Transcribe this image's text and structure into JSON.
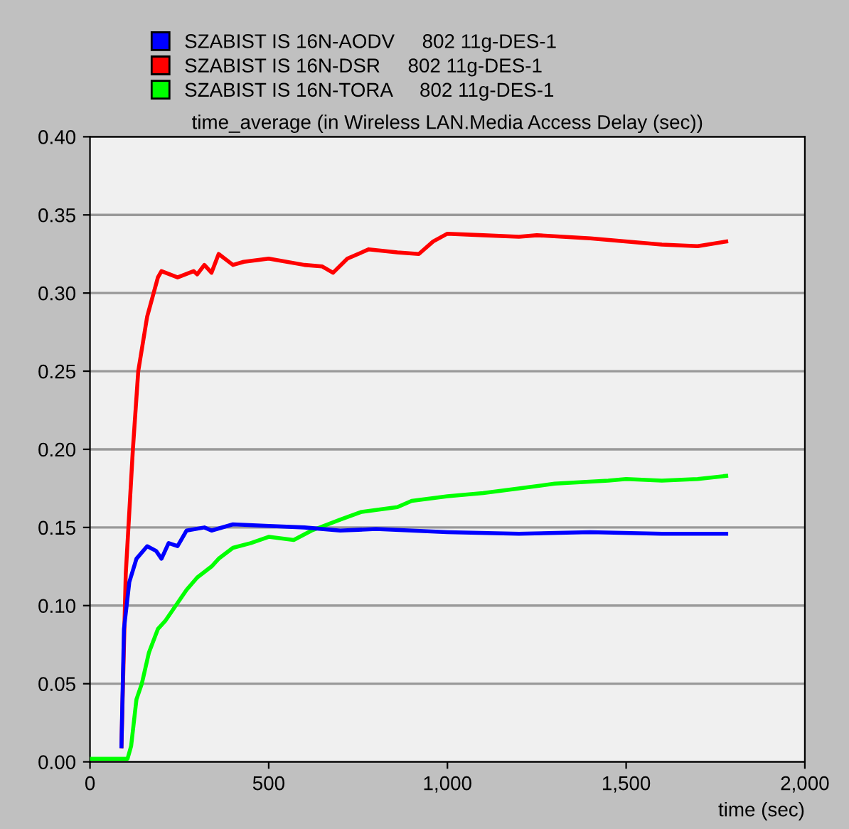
{
  "chart_data": {
    "type": "line",
    "title": "time_average (in Wireless LAN.Media Access Delay (sec))",
    "xlabel": "time (sec)",
    "xlim": [
      0,
      2000
    ],
    "xticks": [
      0,
      500,
      {
        "value": 1000,
        "label": "1,000"
      },
      {
        "value": 1500,
        "label": "1,500"
      },
      {
        "value": 2000,
        "label": "2,000"
      }
    ],
    "ylim": [
      0,
      0.4
    ],
    "yticks": [
      {
        "value": 0,
        "label": "0.00"
      },
      {
        "value": 0.05,
        "label": "0.05"
      },
      {
        "value": 0.1,
        "label": "0.10"
      },
      {
        "value": 0.15,
        "label": "0.15"
      },
      {
        "value": 0.2,
        "label": "0.20"
      },
      {
        "value": 0.25,
        "label": "0.25"
      },
      {
        "value": 0.3,
        "label": "0.30"
      },
      {
        "value": 0.35,
        "label": "0.35"
      },
      {
        "value": 0.4,
        "label": "0.40"
      }
    ],
    "grid": "y",
    "legend": "top left",
    "line_style": "solid",
    "marker": "none",
    "series": [
      {
        "name": "SZABIST IS 16N-AODV     802 11g-DES-1",
        "color": "#0000ff",
        "x": [
          88,
          95,
          110,
          130,
          160,
          185,
          200,
          220,
          245,
          270,
          320,
          340,
          400,
          500,
          600,
          700,
          800,
          900,
          1000,
          1200,
          1400,
          1600,
          1780
        ],
        "values": [
          0.01,
          0.085,
          0.115,
          0.13,
          0.138,
          0.135,
          0.13,
          0.14,
          0.138,
          0.148,
          0.15,
          0.148,
          0.152,
          0.151,
          0.15,
          0.148,
          0.149,
          0.148,
          0.147,
          0.146,
          0.147,
          0.146,
          0.146
        ]
      },
      {
        "name": "SZABIST IS 16N-DSR     802 11g-DES-1",
        "color": "#ff0000",
        "x": [
          88,
          100,
          120,
          135,
          160,
          190,
          200,
          245,
          290,
          300,
          320,
          340,
          360,
          400,
          430,
          500,
          600,
          650,
          680,
          720,
          780,
          860,
          920,
          960,
          1000,
          1100,
          1200,
          1250,
          1400,
          1600,
          1700,
          1780
        ],
        "values": [
          0.01,
          0.12,
          0.2,
          0.25,
          0.285,
          0.31,
          0.314,
          0.31,
          0.314,
          0.312,
          0.318,
          0.313,
          0.325,
          0.318,
          0.32,
          0.322,
          0.318,
          0.317,
          0.313,
          0.322,
          0.328,
          0.326,
          0.325,
          0.333,
          0.338,
          0.337,
          0.336,
          0.337,
          0.335,
          0.331,
          0.33,
          0.333
        ]
      },
      {
        "name": "SZABIST IS 16N-TORA     802 11g-DES-1",
        "color": "#00ff00",
        "x": [
          0,
          105,
          115,
          130,
          145,
          165,
          190,
          210,
          240,
          270,
          300,
          340,
          360,
          400,
          450,
          500,
          570,
          620,
          700,
          760,
          860,
          900,
          1000,
          1100,
          1200,
          1300,
          1450,
          1500,
          1600,
          1700,
          1780
        ],
        "values": [
          0.002,
          0.002,
          0.01,
          0.04,
          0.05,
          0.07,
          0.085,
          0.09,
          0.1,
          0.11,
          0.118,
          0.125,
          0.13,
          0.137,
          0.14,
          0.144,
          0.142,
          0.148,
          0.155,
          0.16,
          0.163,
          0.167,
          0.17,
          0.172,
          0.175,
          0.178,
          0.18,
          0.181,
          0.18,
          0.181,
          0.183
        ]
      }
    ]
  }
}
